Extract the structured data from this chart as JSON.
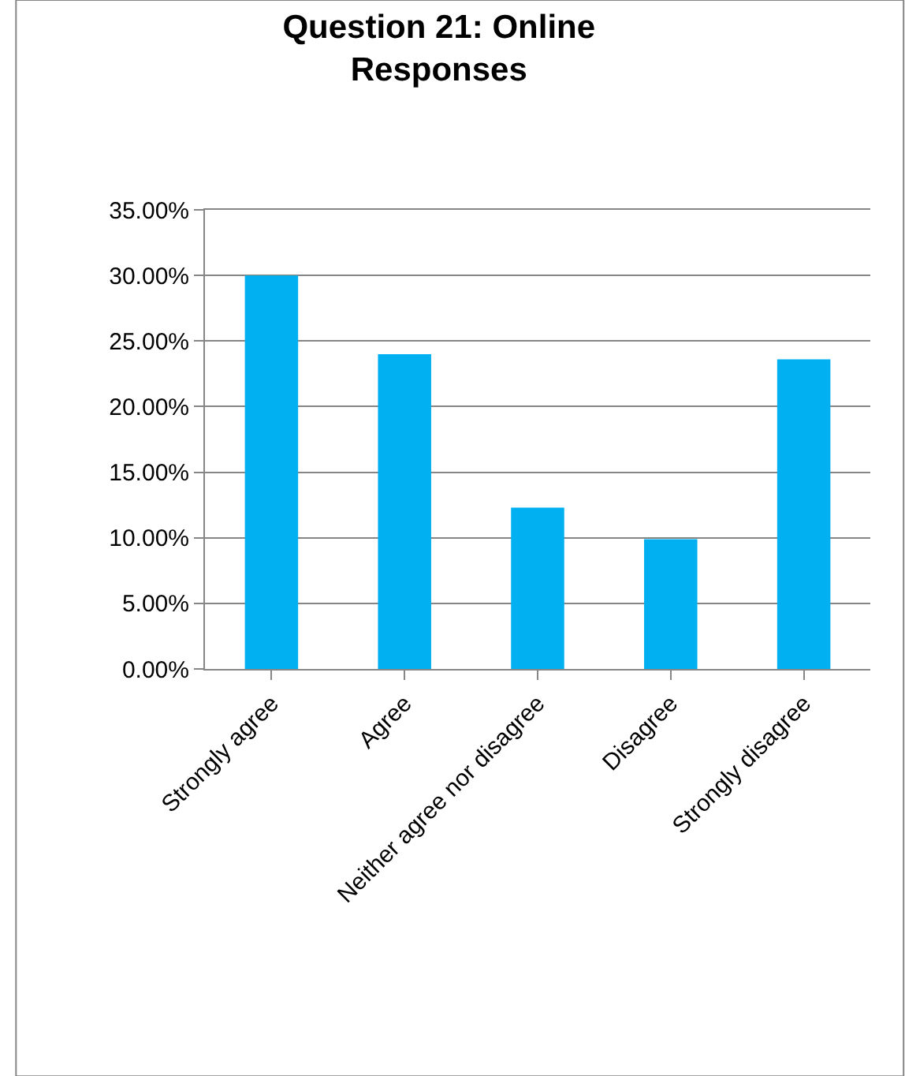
{
  "chart_data": {
    "type": "bar",
    "title": "Question 21: Online Responses",
    "categories": [
      "Strongly agree",
      "Agree",
      "Neither agree nor disagree",
      "Disagree",
      "Strongly disagree"
    ],
    "values": [
      30.0,
      24.0,
      12.3,
      9.9,
      23.6
    ],
    "color": "#00b0f0",
    "ylim": [
      0,
      35
    ],
    "yticks": [
      {
        "value": 0,
        "label": "0.00%"
      },
      {
        "value": 5,
        "label": "5.00%"
      },
      {
        "value": 10,
        "label": "10.00%"
      },
      {
        "value": 15,
        "label": "15.00%"
      },
      {
        "value": 20,
        "label": "20.00%"
      },
      {
        "value": 25,
        "label": "25.00%"
      },
      {
        "value": 30,
        "label": "30.00%"
      },
      {
        "value": 35,
        "label": "35.00%"
      }
    ],
    "grid": "y"
  }
}
